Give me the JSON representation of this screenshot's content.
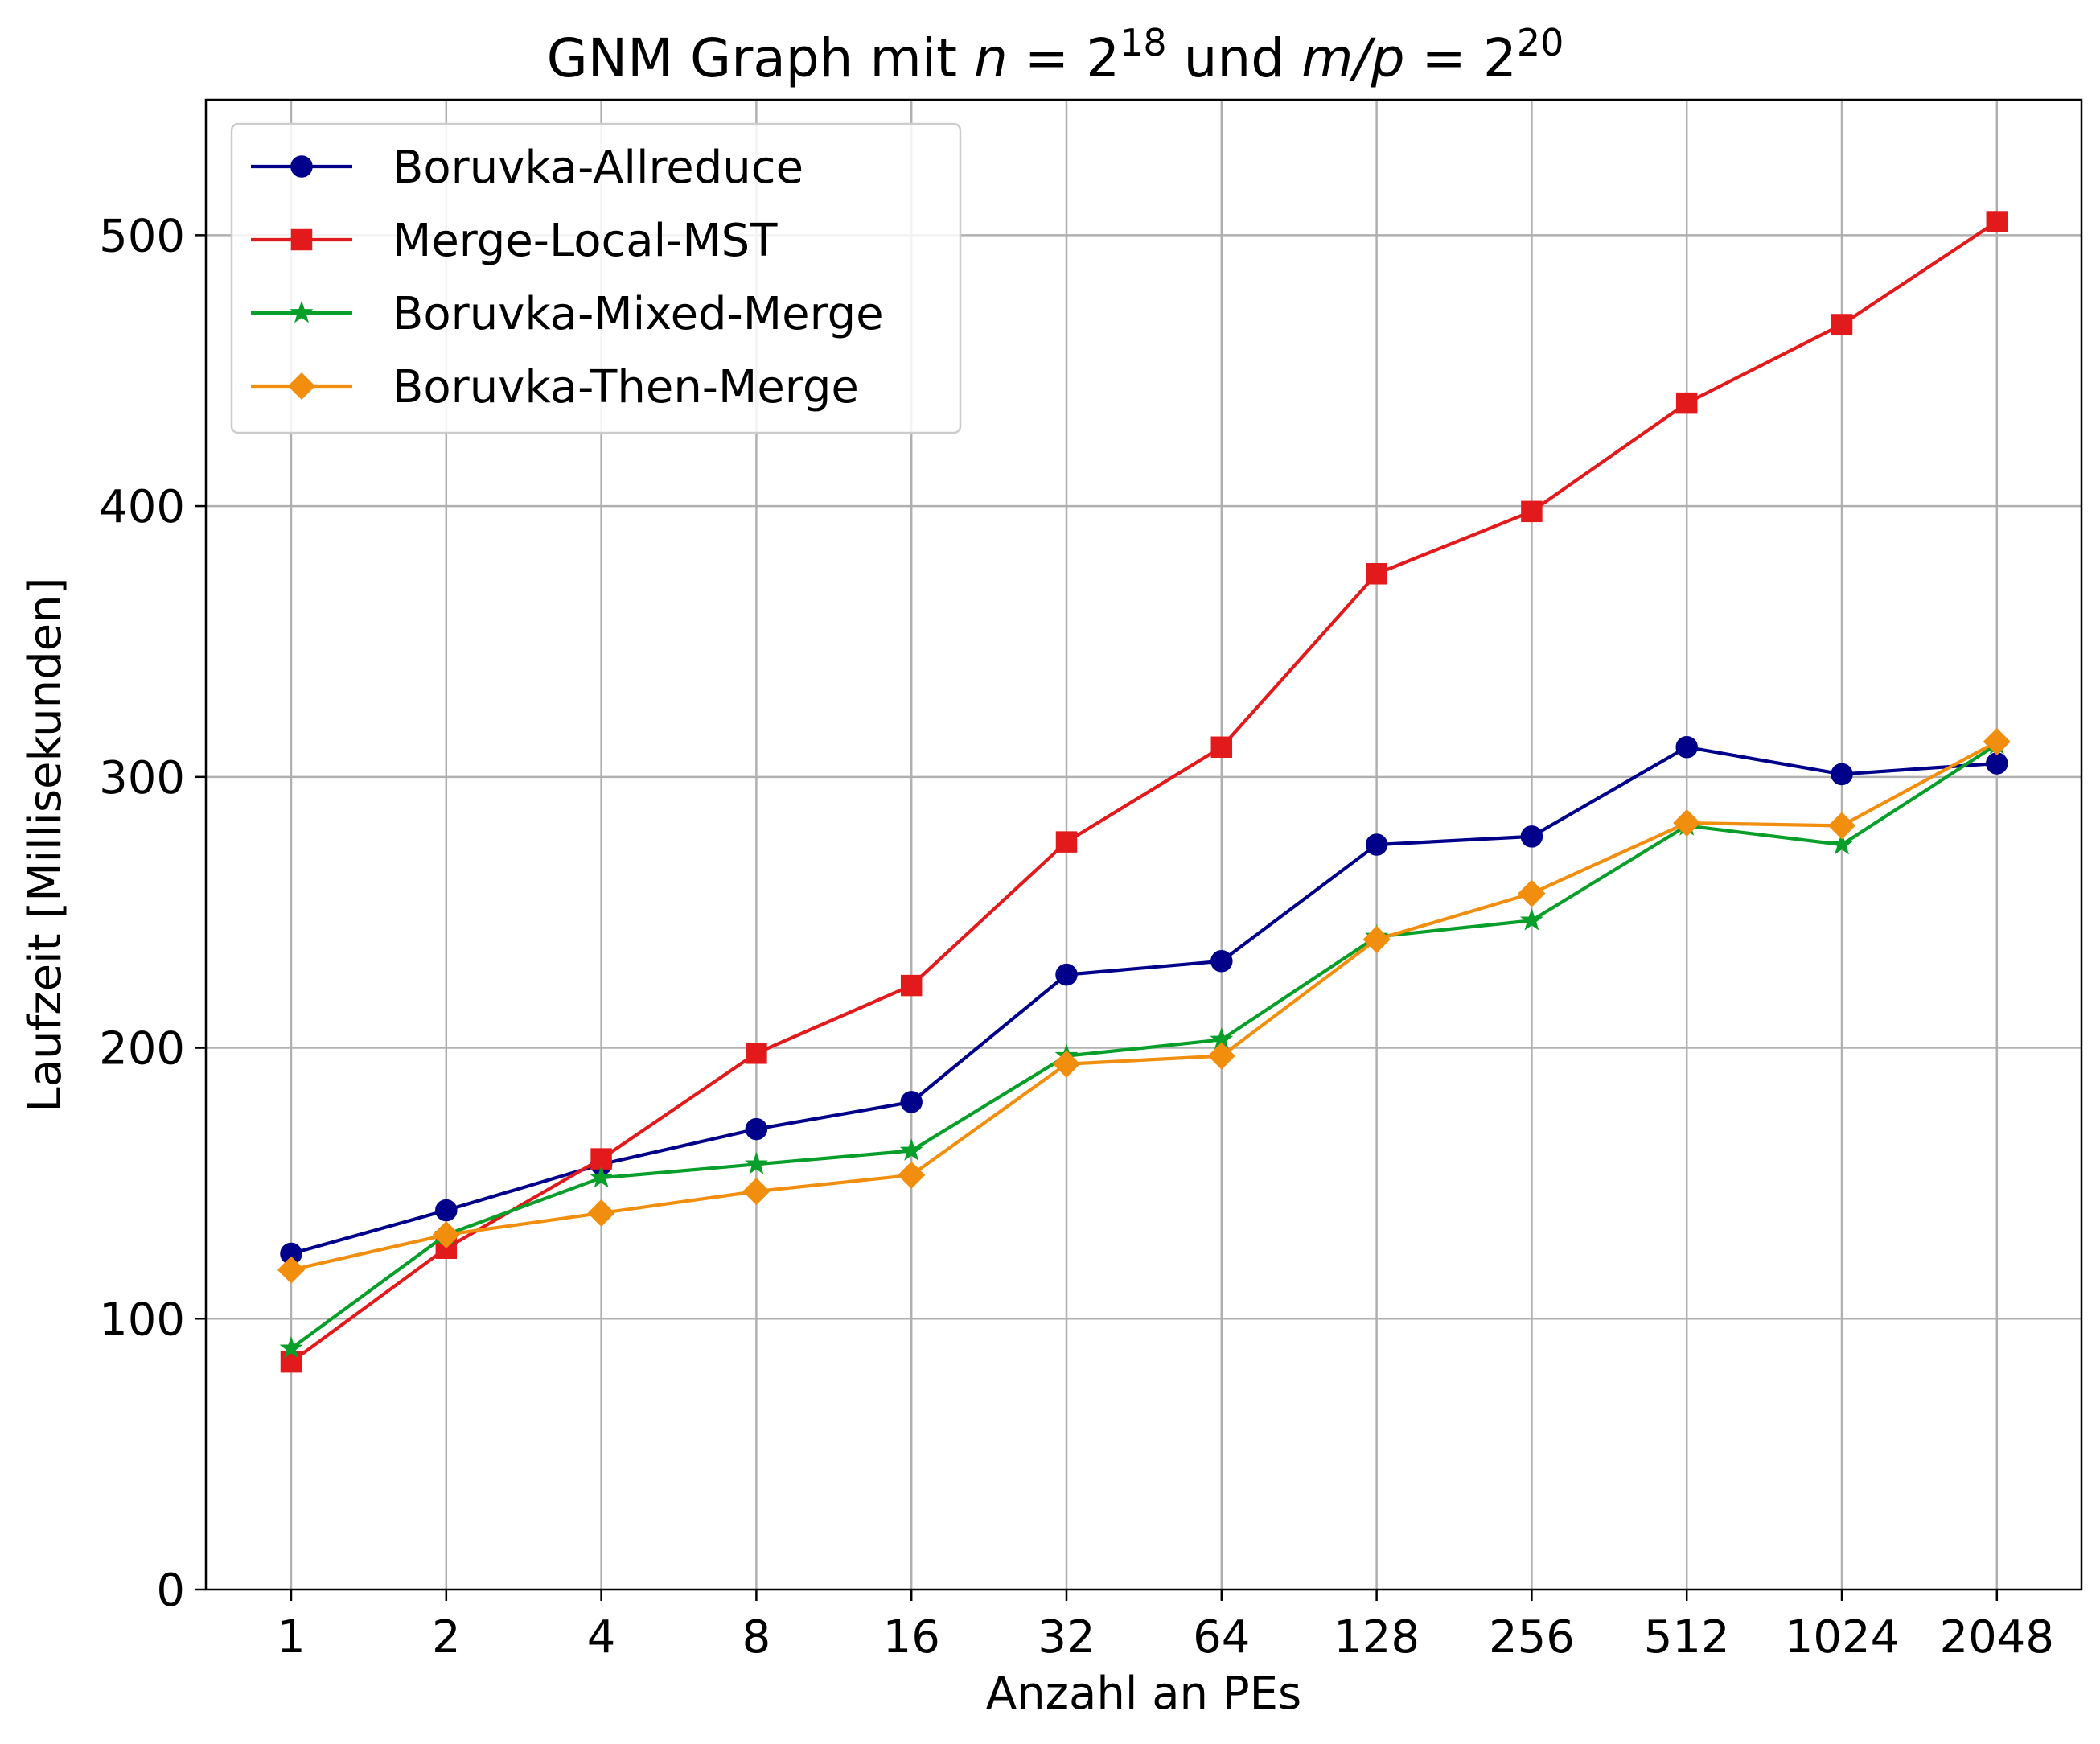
{
  "chart_data": {
    "type": "line",
    "title": {
      "prefix": "GNM Graph mit ",
      "n_var": "n",
      "eq": " = 2",
      "n_exp": "18",
      "mid": " und ",
      "mp_var": "m/p",
      "eq2": " = 2",
      "mp_exp": "20"
    },
    "xlabel": "Anzahl an PEs",
    "ylabel": "Laufzeit [Millisekunden]",
    "categories": [
      "1",
      "2",
      "4",
      "8",
      "16",
      "32",
      "64",
      "128",
      "256",
      "512",
      "1024",
      "2048"
    ],
    "yticks": [
      "0",
      "100",
      "200",
      "300",
      "400",
      "500"
    ],
    "ylim": [
      0,
      550
    ],
    "grid": true,
    "legend_position": "top-left",
    "series": [
      {
        "name": "Boruvka-Allreduce",
        "color": "#00008b",
        "marker": "circle",
        "values": [
          124,
          140,
          157,
          170,
          180,
          227,
          232,
          275,
          278,
          311,
          301,
          305
        ]
      },
      {
        "name": "Merge-Local-MST",
        "color": "#e31a1c",
        "marker": "square",
        "values": [
          84,
          126,
          159,
          198,
          223,
          276,
          311,
          375,
          398,
          438,
          467,
          505
        ]
      },
      {
        "name": "Boruvka-Mixed-Merge",
        "color": "#079e2a",
        "marker": "star",
        "values": [
          89,
          131,
          152,
          157,
          162,
          197,
          203,
          241,
          247,
          282,
          275,
          312
        ]
      },
      {
        "name": "Boruvka-Then-Merge",
        "color": "#f28e0e",
        "marker": "diamond",
        "values": [
          118,
          131,
          139,
          147,
          153,
          194,
          197,
          240,
          257,
          283,
          282,
          313
        ]
      }
    ]
  }
}
